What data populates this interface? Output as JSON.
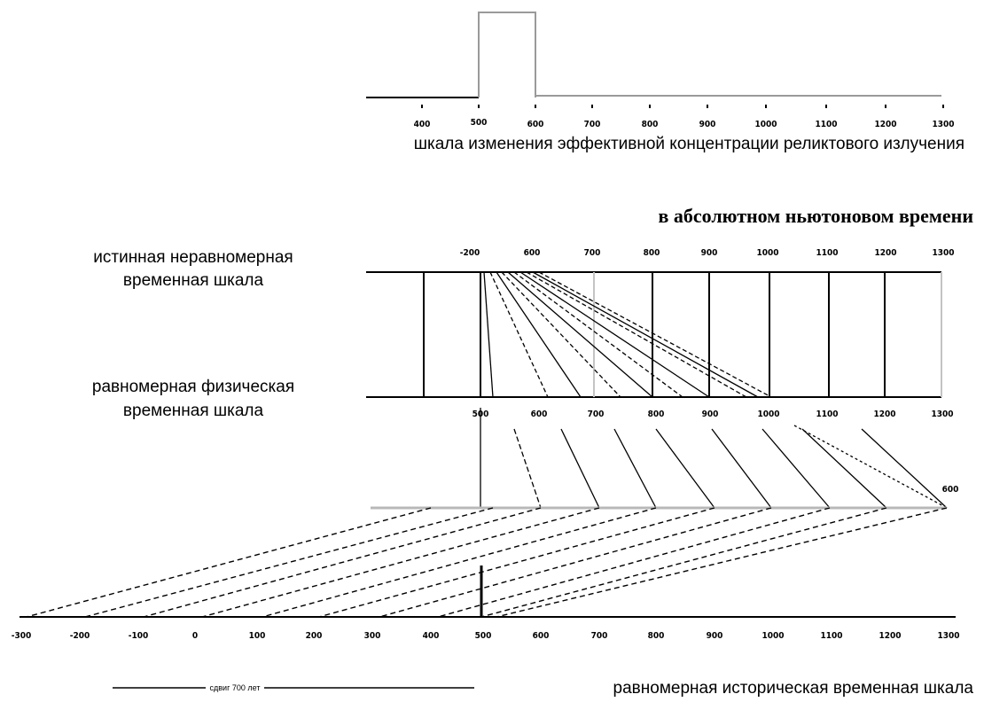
{
  "colors": {
    "ink": "#000000",
    "box": "#9a9a9a",
    "dashed": "#000000",
    "grey_line": "#b8b8b8"
  },
  "top_scale": {
    "caption": "шкала изменения эффективной концентрации реликтового излучения",
    "ticks": [
      "400",
      "500",
      "600",
      "700",
      "800",
      "900",
      "1000",
      "1100",
      "1200",
      "1300"
    ]
  },
  "subtitle": "в абсолютном ньютоновом времени",
  "true_scale": {
    "label_line1": "истинная неравномерная",
    "label_line2": "временная шкала",
    "ticks": [
      "-200",
      "600",
      "700",
      "800",
      "900",
      "1000",
      "1100",
      "1200",
      "1300"
    ]
  },
  "physical_scale": {
    "label_line1": "равномерная физическая",
    "label_line2": "временная шкала",
    "ticks": [
      "500",
      "600",
      "700",
      "800",
      "900",
      "1000",
      "1100",
      "1200",
      "1300"
    ]
  },
  "converge_label": "600",
  "historical_scale": {
    "caption": "равномерная историческая временная шкала",
    "interval_label": "сдвиг 700 лет",
    "ticks": [
      "-300",
      "-200",
      "-100",
      "0",
      "100",
      "200",
      "300",
      "400",
      "500",
      "600",
      "700",
      "800",
      "900",
      "1000",
      "1100",
      "1200",
      "1300"
    ]
  }
}
